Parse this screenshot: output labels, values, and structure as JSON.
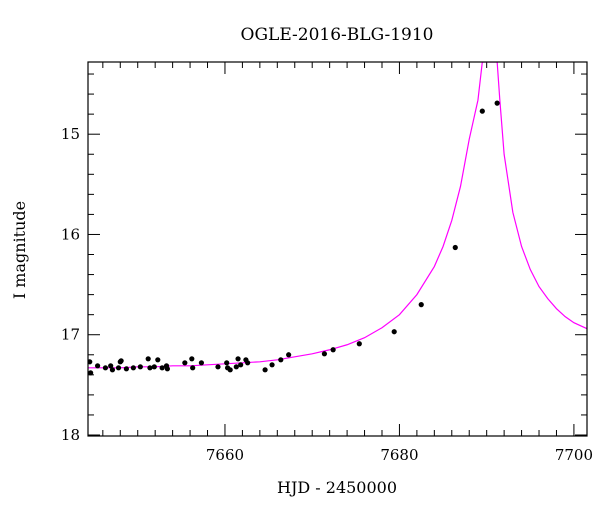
{
  "chart_data": {
    "type": "scatter",
    "title": "OGLE-2016-BLG-1910",
    "xlabel": "HJD - 2450000",
    "ylabel": "I magnitude",
    "xlim": [
      7644.3,
      7701.5
    ],
    "ylim": [
      18.01,
      14.28
    ],
    "y_inverted": true,
    "x_ticks": [
      7660,
      7680,
      7700
    ],
    "y_ticks": [
      15,
      16,
      17,
      18
    ],
    "x_tick_labels": [
      "7660",
      "7680",
      "7700"
    ],
    "y_tick_labels": [
      "15",
      "16",
      "17",
      "18"
    ],
    "x_minor_step": 2,
    "y_minor_step": 0.2,
    "grid": false,
    "colors": {
      "model": "#ff00ff",
      "points": "#000000"
    },
    "series": [
      {
        "type": "points",
        "x": [
          7644.5,
          7644.6,
          7645.4,
          7646.3,
          7646.9,
          7647.1,
          7647.8,
          7648.0,
          7648.1,
          7648.7,
          7649.5,
          7650.3,
          7651.2,
          7651.4,
          7651.9,
          7652.3,
          7652.8,
          7653.3,
          7653.4,
          7655.4,
          7656.2,
          7656.3,
          7657.3,
          7659.2,
          7660.2,
          7660.3,
          7660.6,
          7661.3,
          7661.5,
          7661.8,
          7662.4,
          7662.6,
          7664.6,
          7665.4,
          7666.4,
          7667.3,
          7671.4,
          7672.4,
          7675.4,
          7679.4,
          7682.5,
          7686.4,
          7689.5,
          7691.2
        ],
        "y": [
          17.27,
          17.38,
          17.31,
          17.33,
          17.31,
          17.35,
          17.33,
          17.27,
          17.26,
          17.34,
          17.33,
          17.32,
          17.24,
          17.33,
          17.32,
          17.25,
          17.33,
          17.31,
          17.34,
          17.28,
          17.24,
          17.33,
          17.28,
          17.32,
          17.28,
          17.33,
          17.35,
          17.32,
          17.24,
          17.3,
          17.25,
          17.28,
          17.35,
          17.3,
          17.25,
          17.2,
          17.19,
          17.15,
          17.09,
          16.97,
          16.7,
          16.13,
          14.77,
          14.69
        ],
        "err": [
          0.02,
          0.02,
          0.02,
          0.02,
          0.02,
          0.02,
          0.02,
          0.02,
          0.02,
          0.02,
          0.02,
          0.02,
          0.02,
          0.02,
          0.02,
          0.02,
          0.02,
          0.02,
          0.02,
          0.02,
          0.02,
          0.02,
          0.02,
          0.02,
          0.02,
          0.02,
          0.02,
          0.02,
          0.02,
          0.02,
          0.02,
          0.02,
          0.02,
          0.02,
          0.02,
          0.02,
          0.02,
          0.02,
          0.02,
          0.02,
          0.02,
          0.02,
          0.02,
          0.02
        ]
      },
      {
        "type": "model",
        "x": [
          7644.3,
          7646,
          7648,
          7650,
          7652,
          7654,
          7656,
          7658,
          7660,
          7662,
          7664,
          7666,
          7668,
          7670,
          7672,
          7674,
          7676,
          7678,
          7680,
          7682,
          7684,
          7685,
          7686,
          7687,
          7688,
          7689,
          7689.5,
          7690,
          7690.2,
          7690.6,
          7690.9,
          7691.2,
          7691.5,
          7692,
          7693,
          7694,
          7695,
          7696,
          7697,
          7698,
          7699,
          7700,
          7701.5
        ],
        "y": [
          17.33,
          17.33,
          17.33,
          17.32,
          17.32,
          17.31,
          17.31,
          17.3,
          17.29,
          17.28,
          17.27,
          17.25,
          17.22,
          17.19,
          17.15,
          17.1,
          17.03,
          16.93,
          16.8,
          16.6,
          16.32,
          16.12,
          15.86,
          15.52,
          15.05,
          14.66,
          14.28,
          14.28,
          14.28,
          14.28,
          14.28,
          14.28,
          14.65,
          15.2,
          15.78,
          16.12,
          16.35,
          16.52,
          16.64,
          16.74,
          16.82,
          16.88,
          16.94
        ]
      }
    ]
  }
}
